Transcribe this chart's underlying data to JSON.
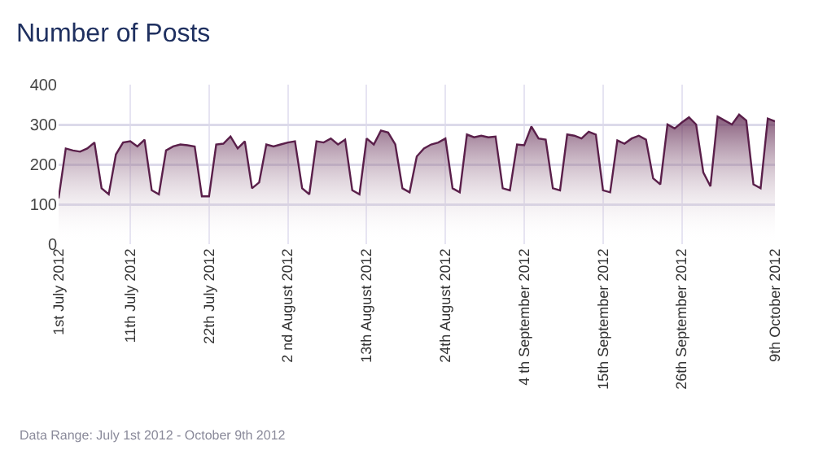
{
  "chart_data": {
    "type": "area",
    "title": "Number of Posts",
    "annotations": [
      "Data Range: July 1st 2012 - October 9th 2012"
    ],
    "x": [
      "2012-07-01",
      "2012-07-02",
      "2012-07-03",
      "2012-07-04",
      "2012-07-05",
      "2012-07-06",
      "2012-07-07",
      "2012-07-08",
      "2012-07-09",
      "2012-07-10",
      "2012-07-11",
      "2012-07-12",
      "2012-07-13",
      "2012-07-14",
      "2012-07-15",
      "2012-07-16",
      "2012-07-17",
      "2012-07-18",
      "2012-07-19",
      "2012-07-20",
      "2012-07-21",
      "2012-07-22",
      "2012-07-23",
      "2012-07-24",
      "2012-07-25",
      "2012-07-26",
      "2012-07-27",
      "2012-07-28",
      "2012-07-29",
      "2012-07-30",
      "2012-07-31",
      "2012-08-01",
      "2012-08-02",
      "2012-08-03",
      "2012-08-04",
      "2012-08-05",
      "2012-08-06",
      "2012-08-07",
      "2012-08-08",
      "2012-08-09",
      "2012-08-10",
      "2012-08-11",
      "2012-08-12",
      "2012-08-13",
      "2012-08-14",
      "2012-08-15",
      "2012-08-16",
      "2012-08-17",
      "2012-08-18",
      "2012-08-19",
      "2012-08-20",
      "2012-08-21",
      "2012-08-22",
      "2012-08-23",
      "2012-08-24",
      "2012-08-25",
      "2012-08-26",
      "2012-08-27",
      "2012-08-28",
      "2012-08-29",
      "2012-08-30",
      "2012-08-31",
      "2012-09-01",
      "2012-09-02",
      "2012-09-03",
      "2012-09-04",
      "2012-09-05",
      "2012-09-06",
      "2012-09-07",
      "2012-09-08",
      "2012-09-09",
      "2012-09-10",
      "2012-09-11",
      "2012-09-12",
      "2012-09-13",
      "2012-09-14",
      "2012-09-15",
      "2012-09-16",
      "2012-09-17",
      "2012-09-18",
      "2012-09-19",
      "2012-09-20",
      "2012-09-21",
      "2012-09-22",
      "2012-09-23",
      "2012-09-24",
      "2012-09-25",
      "2012-09-26",
      "2012-09-27",
      "2012-09-28",
      "2012-09-29",
      "2012-09-30",
      "2012-10-01",
      "2012-10-02",
      "2012-10-03",
      "2012-10-04",
      "2012-10-05",
      "2012-10-06",
      "2012-10-07",
      "2012-10-08",
      "2012-10-09"
    ],
    "series": [
      {
        "color": "#5a1f4a",
        "values": [
          115,
          240,
          235,
          232,
          240,
          255,
          140,
          125,
          225,
          255,
          258,
          245,
          262,
          135,
          125,
          235,
          245,
          250,
          248,
          245,
          120,
          120,
          250,
          252,
          270,
          240,
          258,
          140,
          155,
          250,
          245,
          250,
          255,
          258,
          140,
          125,
          258,
          255,
          265,
          250,
          262,
          135,
          125,
          265,
          250,
          285,
          280,
          250,
          140,
          130,
          220,
          240,
          250,
          255,
          265,
          140,
          130,
          275,
          268,
          272,
          268,
          270,
          140,
          135,
          250,
          248,
          295,
          265,
          262,
          140,
          135,
          275,
          272,
          265,
          282,
          275,
          135,
          130,
          260,
          252,
          265,
          272,
          262,
          165,
          150,
          300,
          290,
          305,
          318,
          300,
          180,
          145,
          320,
          310,
          300,
          325,
          310,
          150,
          140,
          315,
          308
        ]
      }
    ],
    "xlim": [
      "2012-07-01",
      "2012-10-09"
    ],
    "xticks": [
      {
        "value": "2012-07-01",
        "label": "1st July 2012"
      },
      {
        "value": "2012-07-11",
        "label": "11th July 2012"
      },
      {
        "value": "2012-07-22",
        "label": "22th July 2012"
      },
      {
        "value": "2012-08-02",
        "label": "2 nd August 2012"
      },
      {
        "value": "2012-08-13",
        "label": "13th August 2012"
      },
      {
        "value": "2012-08-24",
        "label": "24th August 2012"
      },
      {
        "value": "2012-09-04",
        "label": "4 th September 2012"
      },
      {
        "value": "2012-09-15",
        "label": "15th September 2012"
      },
      {
        "value": "2012-09-26",
        "label": "26th September 2012"
      },
      {
        "value": "2012-10-09",
        "label": "9th October 2012"
      }
    ],
    "ylim": [
      0,
      400
    ],
    "yticks": [
      0,
      100,
      200,
      300,
      400
    ],
    "grid": true,
    "marker": "none",
    "line_style": "solid"
  }
}
